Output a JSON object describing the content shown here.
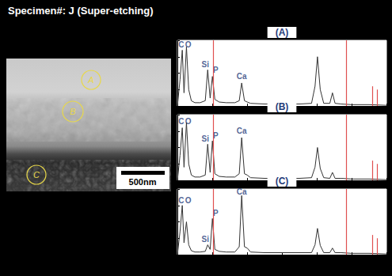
{
  "title": "Specimen#: J (Super-etching)",
  "micrograph": {
    "regions": [
      {
        "label": "A"
      },
      {
        "label": "B"
      },
      {
        "label": "C"
      }
    ],
    "scale_bar": "500nm"
  },
  "chart_data": [
    {
      "type": "line",
      "title": "(A)",
      "x": [
        0,
        0.15,
        0.28,
        0.38,
        0.52,
        0.65,
        0.8,
        1.0,
        1.3,
        1.6,
        1.74,
        1.88,
        2.01,
        2.15,
        2.4,
        2.8,
        3.3,
        3.55,
        3.69,
        3.85,
        4.01,
        4.2,
        5,
        6,
        7,
        7.7,
        7.9,
        8.04,
        8.2,
        8.4,
        8.75,
        8.9,
        9.05,
        9.4,
        10,
        11,
        12
      ],
      "values": [
        0,
        40,
        85,
        20,
        90,
        25,
        8,
        5,
        5,
        8,
        55,
        12,
        45,
        10,
        6,
        5,
        5,
        8,
        35,
        8,
        6,
        4,
        3,
        3,
        3,
        4,
        30,
        75,
        25,
        4,
        4,
        20,
        4,
        3,
        2,
        2,
        1
      ],
      "color": "#333333",
      "xlim": [
        0,
        12
      ],
      "xticks": [
        0,
        2,
        4,
        6,
        8,
        10,
        12
      ],
      "ylim": [
        0,
        100
      ],
      "yticks": [
        0,
        25,
        50,
        75,
        100
      ],
      "grid": false,
      "tick_labels": false,
      "annotations": [
        {
          "text": "C",
          "x": 0.22,
          "y": 93
        },
        {
          "text": "O",
          "x": 0.62,
          "y": 93
        },
        {
          "text": "Si",
          "x": 1.6,
          "y": 63
        },
        {
          "text": "P",
          "x": 2.2,
          "y": 55
        },
        {
          "text": "Ca",
          "x": 3.69,
          "y": 45
        }
      ],
      "markers": {
        "x": [
          2.05,
          9.7,
          11.2,
          11.45
        ],
        "y": [
          100,
          100,
          30,
          25
        ],
        "color": "#e05050"
      }
    },
    {
      "type": "line",
      "title": "(B)",
      "x": [
        0,
        0.15,
        0.28,
        0.38,
        0.52,
        0.65,
        0.8,
        1.0,
        1.3,
        1.6,
        1.74,
        1.88,
        2.01,
        2.15,
        2.4,
        2.8,
        3.3,
        3.55,
        3.69,
        3.85,
        4.01,
        4.2,
        5,
        6,
        7,
        7.7,
        7.9,
        8.04,
        8.2,
        8.4,
        8.75,
        8.9,
        9.05,
        9.4,
        10,
        11,
        12
      ],
      "values": [
        0,
        38,
        80,
        20,
        88,
        25,
        8,
        5,
        5,
        8,
        55,
        12,
        60,
        10,
        6,
        5,
        5,
        10,
        65,
        10,
        8,
        4,
        3,
        3,
        3,
        4,
        20,
        50,
        18,
        4,
        3,
        12,
        3,
        3,
        2,
        2,
        1
      ],
      "color": "#333333",
      "xlim": [
        0,
        12
      ],
      "xticks": [
        0,
        2,
        4,
        6,
        8,
        10,
        12
      ],
      "ylim": [
        0,
        100
      ],
      "yticks": [
        0,
        25,
        50,
        75,
        100
      ],
      "grid": false,
      "tick_labels": false,
      "annotations": [
        {
          "text": "C",
          "x": 0.22,
          "y": 90
        },
        {
          "text": "O",
          "x": 0.62,
          "y": 90
        },
        {
          "text": "Si",
          "x": 1.6,
          "y": 63
        },
        {
          "text": "P",
          "x": 2.2,
          "y": 68
        },
        {
          "text": "Ca",
          "x": 3.69,
          "y": 75
        }
      ],
      "markers": {
        "x": [
          2.05,
          9.7,
          11.2,
          11.45
        ],
        "y": [
          100,
          100,
          30,
          25
        ],
        "color": "#e05050"
      }
    },
    {
      "type": "line",
      "title": "(C)",
      "x": [
        0,
        0.15,
        0.28,
        0.38,
        0.52,
        0.65,
        0.8,
        1.0,
        1.3,
        1.6,
        1.74,
        1.88,
        2.01,
        2.15,
        2.4,
        2.8,
        3.3,
        3.55,
        3.69,
        3.85,
        4.01,
        4.2,
        5,
        6,
        7,
        7.7,
        7.9,
        8.04,
        8.2,
        8.4,
        8.75,
        8.9,
        9.05,
        9.4,
        10,
        11,
        12
      ],
      "values": [
        0,
        35,
        75,
        18,
        50,
        15,
        6,
        4,
        4,
        5,
        15,
        8,
        55,
        8,
        5,
        4,
        4,
        12,
        90,
        12,
        10,
        4,
        3,
        3,
        3,
        3,
        15,
        40,
        14,
        3,
        3,
        10,
        3,
        3,
        2,
        2,
        1
      ],
      "color": "#333333",
      "xlim": [
        0,
        12
      ],
      "xticks": [
        0,
        2,
        4,
        6,
        8,
        10,
        12
      ],
      "ylim": [
        0,
        100
      ],
      "yticks": [
        0,
        25,
        50,
        75,
        100
      ],
      "grid": false,
      "tick_labels": false,
      "annotations": [
        {
          "text": "C",
          "x": 0.22,
          "y": 83
        },
        {
          "text": "O",
          "x": 0.62,
          "y": 83
        },
        {
          "text": "Si",
          "x": 1.6,
          "y": 24
        },
        {
          "text": "P",
          "x": 2.2,
          "y": 63
        },
        {
          "text": "Ca",
          "x": 3.69,
          "y": 96
        }
      ],
      "markers": {
        "x": [
          2.05,
          9.7,
          11.2,
          11.45
        ],
        "y": [
          100,
          100,
          30,
          25
        ],
        "color": "#e05050"
      }
    }
  ]
}
